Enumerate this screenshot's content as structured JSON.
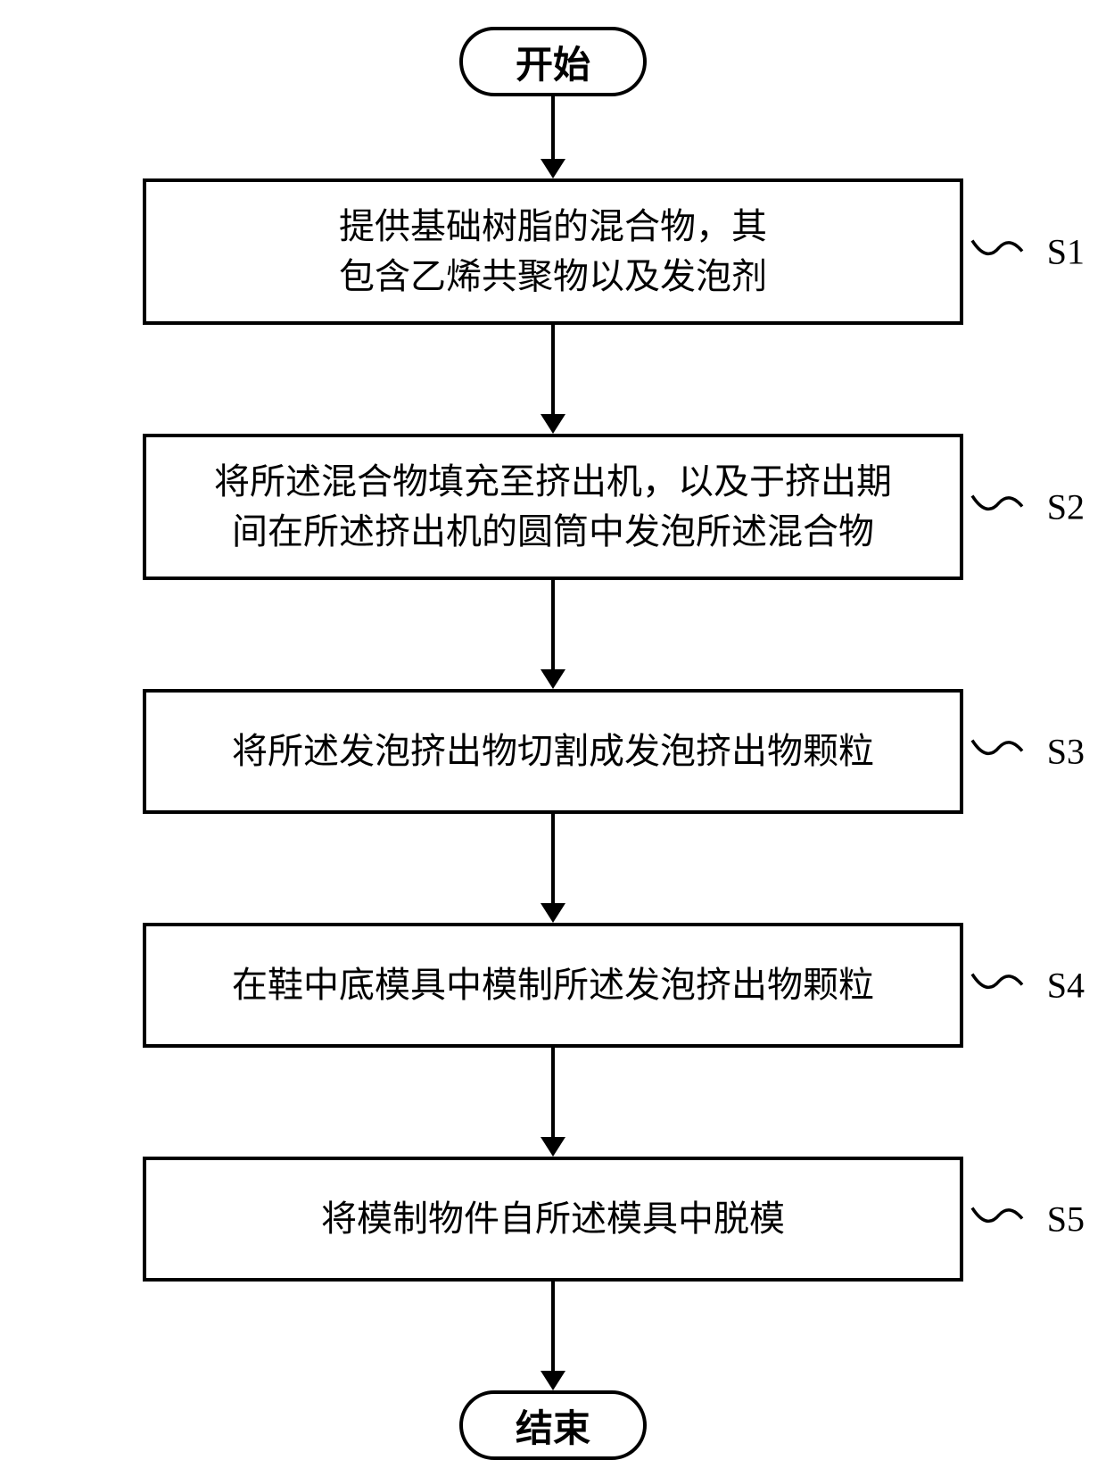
{
  "flowchart": {
    "type": "flowchart",
    "background_color": "#ffffff",
    "border_color": "#000000",
    "border_width": 4,
    "text_color": "#000000",
    "font_family": "SimSun",
    "terminal_fontsize": 42,
    "step_fontsize": 40,
    "label_fontsize": 40,
    "terminal_width": 210,
    "terminal_height": 78,
    "terminal_border_radius": 39,
    "step_width": 920,
    "arrow_length_short": 70,
    "arrow_length_long": 100,
    "arrow_head_width": 28,
    "arrow_head_height": 22,
    "arrow_stroke_width": 4,
    "connector_curve": true,
    "start": {
      "label": "开始"
    },
    "end": {
      "label": "结束"
    },
    "steps": [
      {
        "id": "S1",
        "lines": [
          "提供基础树脂的混合物，其",
          "包含乙烯共聚物以及发泡剂"
        ]
      },
      {
        "id": "S2",
        "lines": [
          "将所述混合物填充至挤出机，以及于挤出期",
          "间在所述挤出机的圆筒中发泡所述混合物"
        ]
      },
      {
        "id": "S3",
        "lines": [
          "将所述发泡挤出物切割成发泡挤出物颗粒"
        ]
      },
      {
        "id": "S4",
        "lines": [
          "在鞋中底模具中模制所述发泡挤出物颗粒"
        ]
      },
      {
        "id": "S5",
        "lines": [
          "将模制物件自所述模具中脱模"
        ]
      }
    ]
  }
}
